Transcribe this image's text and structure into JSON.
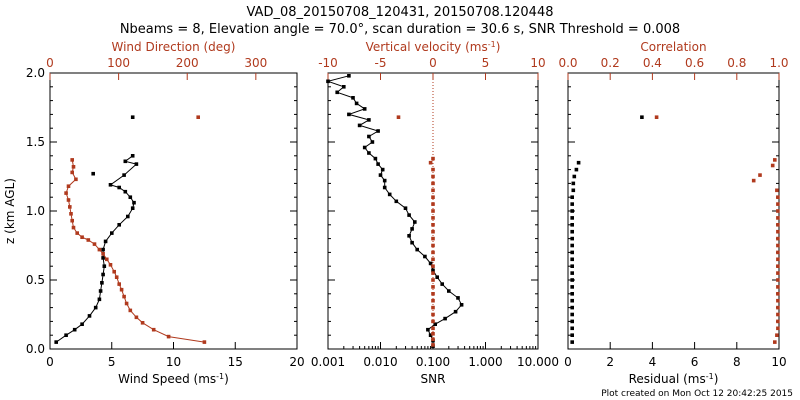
{
  "title": {
    "line1": "VAD_08_20150708_120431, 20150708.120448",
    "line2": "Nbeams = 8, Elevation angle = 70.0°, scan duration = 30.6 s, SNR Threshold = 0.008"
  },
  "footer": "Plot created on Mon Oct 12 20:42:25 2015",
  "colors": {
    "black": "#000000",
    "red": "#b03a1e"
  },
  "chart_data": [
    {
      "type": "scatter",
      "name": "wind-panel",
      "ylabel": "z (km AGL)",
      "ylim": [
        0,
        2.0
      ],
      "yticks": [
        "0.0",
        "0.5",
        "1.0",
        "1.5",
        "2.0"
      ],
      "bottom_axis": {
        "label": "Wind Speed (ms",
        "label_sup": "-1",
        "label_tail": ")",
        "range": [
          0,
          20
        ],
        "ticks": [
          "0",
          "5",
          "10",
          "15",
          "20"
        ]
      },
      "top_axis": {
        "label": "Wind Direction (deg)",
        "range": [
          0,
          360
        ],
        "ticks": [
          "0",
          "100",
          "200",
          "300"
        ]
      },
      "series": [
        {
          "name": "Wind speed",
          "axis": "bottom",
          "color": "black",
          "line": true,
          "points": [
            [
              0.5,
              0.05
            ],
            [
              1.3,
              0.1
            ],
            [
              2.0,
              0.14
            ],
            [
              2.6,
              0.18
            ],
            [
              3.2,
              0.24
            ],
            [
              3.7,
              0.3
            ],
            [
              4.0,
              0.36
            ],
            [
              4.1,
              0.42
            ],
            [
              4.2,
              0.48
            ],
            [
              4.3,
              0.54
            ],
            [
              4.4,
              0.6
            ],
            [
              4.3,
              0.66
            ],
            [
              4.3,
              0.72
            ],
            [
              4.5,
              0.78
            ],
            [
              5.0,
              0.84
            ],
            [
              5.6,
              0.9
            ],
            [
              6.3,
              0.96
            ],
            [
              6.7,
              1.02
            ],
            [
              6.8,
              1.06
            ],
            [
              6.5,
              1.1
            ],
            [
              6.1,
              1.14
            ],
            [
              5.6,
              1.17
            ],
            [
              4.9,
              1.19
            ],
            [
              6.0,
              1.26
            ],
            [
              7.0,
              1.34
            ],
            [
              6.1,
              1.36
            ],
            [
              6.7,
              1.4
            ]
          ]
        },
        {
          "name": "Wind speed (upper)",
          "axis": "bottom",
          "color": "black",
          "line": false,
          "points": [
            [
              3.5,
              1.27
            ],
            [
              6.7,
              1.68
            ]
          ]
        },
        {
          "name": "Wind direction",
          "axis": "bottom",
          "color": "red",
          "line": true,
          "points": [
            [
              12.5,
              0.05
            ],
            [
              9.6,
              0.09
            ],
            [
              8.4,
              0.14
            ],
            [
              7.5,
              0.19
            ],
            [
              7.0,
              0.23
            ],
            [
              6.5,
              0.28
            ],
            [
              6.2,
              0.33
            ],
            [
              6.0,
              0.38
            ],
            [
              5.8,
              0.43
            ],
            [
              5.6,
              0.47
            ],
            [
              5.4,
              0.52
            ],
            [
              5.2,
              0.56
            ],
            [
              4.9,
              0.61
            ],
            [
              4.6,
              0.65
            ],
            [
              4.3,
              0.69
            ],
            [
              4.0,
              0.72
            ],
            [
              3.6,
              0.76
            ],
            [
              3.1,
              0.79
            ],
            [
              2.6,
              0.81
            ],
            [
              2.2,
              0.84
            ],
            [
              1.9,
              0.88
            ],
            [
              1.8,
              0.93
            ],
            [
              1.7,
              0.98
            ],
            [
              1.6,
              1.03
            ],
            [
              1.5,
              1.08
            ],
            [
              1.3,
              1.13
            ],
            [
              1.5,
              1.18
            ],
            [
              2.1,
              1.23
            ],
            [
              1.8,
              1.28
            ],
            [
              1.9,
              1.32
            ],
            [
              1.8,
              1.37
            ]
          ]
        },
        {
          "name": "Wind direction (upper)",
          "axis": "bottom",
          "color": "red",
          "line": false,
          "points": [
            [
              12.0,
              1.68
            ]
          ]
        }
      ]
    },
    {
      "type": "scatter",
      "name": "vertical-velocity-panel",
      "ylim": [
        0,
        2.0
      ],
      "bottom_axis": {
        "label": "SNR",
        "scale": "log",
        "range": [
          0.001,
          10.0
        ],
        "ticks": [
          "0.001",
          "0.010",
          "0.100",
          "1.000",
          "10.000"
        ]
      },
      "top_axis": {
        "label": "Vertical velocity (ms",
        "label_sup": "-1",
        "label_tail": ")",
        "range": [
          -10,
          10
        ],
        "ticks": [
          "-10",
          "-5",
          "0",
          "5",
          "10"
        ]
      },
      "zero_reference": 0,
      "series": [
        {
          "name": "SNR",
          "axis": "bottom",
          "color": "black",
          "line": true,
          "points": [
            [
              0.1,
              0.02
            ],
            [
              0.1,
              0.06
            ],
            [
              0.09,
              0.1
            ],
            [
              0.08,
              0.14
            ],
            [
              0.11,
              0.18
            ],
            [
              0.17,
              0.22
            ],
            [
              0.27,
              0.27
            ],
            [
              0.35,
              0.32
            ],
            [
              0.3,
              0.37
            ],
            [
              0.2,
              0.42
            ],
            [
              0.15,
              0.47
            ],
            [
              0.12,
              0.52
            ],
            [
              0.1,
              0.57
            ],
            [
              0.09,
              0.62
            ],
            [
              0.07,
              0.67
            ],
            [
              0.05,
              0.72
            ],
            [
              0.04,
              0.77
            ],
            [
              0.035,
              0.82
            ],
            [
              0.04,
              0.87
            ],
            [
              0.045,
              0.92
            ],
            [
              0.035,
              0.97
            ],
            [
              0.03,
              1.02
            ],
            [
              0.02,
              1.07
            ],
            [
              0.015,
              1.12
            ],
            [
              0.012,
              1.17
            ],
            [
              0.012,
              1.22
            ],
            [
              0.01,
              1.26
            ],
            [
              0.011,
              1.3
            ],
            [
              0.009,
              1.34
            ],
            [
              0.008,
              1.38
            ],
            [
              0.006,
              1.42
            ],
            [
              0.005,
              1.46
            ],
            [
              0.007,
              1.5
            ],
            [
              0.006,
              1.54
            ],
            [
              0.009,
              1.58
            ],
            [
              0.004,
              1.62
            ],
            [
              0.006,
              1.66
            ],
            [
              0.0025,
              1.7
            ],
            [
              0.005,
              1.74
            ],
            [
              0.0035,
              1.78
            ],
            [
              0.003,
              1.82
            ],
            [
              0.0015,
              1.86
            ],
            [
              0.002,
              1.9
            ],
            [
              0.001,
              1.94
            ],
            [
              0.0025,
              1.98
            ]
          ]
        },
        {
          "name": "Vertical velocity",
          "axis": "bottom",
          "color": "red",
          "line": false,
          "points": [
            [
              0.1,
              0.03
            ],
            [
              0.1,
              0.07
            ],
            [
              0.1,
              0.11
            ],
            [
              0.1,
              0.15
            ],
            [
              0.1,
              0.2
            ],
            [
              0.1,
              0.25
            ],
            [
              0.1,
              0.3
            ],
            [
              0.1,
              0.35
            ],
            [
              0.1,
              0.4
            ],
            [
              0.1,
              0.45
            ],
            [
              0.1,
              0.5
            ],
            [
              0.1,
              0.55
            ],
            [
              0.1,
              0.6
            ],
            [
              0.1,
              0.65
            ],
            [
              0.1,
              0.7
            ],
            [
              0.1,
              0.75
            ],
            [
              0.1,
              0.8
            ],
            [
              0.1,
              0.85
            ],
            [
              0.1,
              0.9
            ],
            [
              0.1,
              0.95
            ],
            [
              0.1,
              1.0
            ],
            [
              0.1,
              1.05
            ],
            [
              0.1,
              1.1
            ],
            [
              0.1,
              1.15
            ],
            [
              0.1,
              1.2
            ],
            [
              0.1,
              1.25
            ],
            [
              0.1,
              1.3
            ],
            [
              0.09,
              1.35
            ],
            [
              0.1,
              1.38
            ],
            [
              0.022,
              1.68
            ]
          ]
        }
      ]
    },
    {
      "type": "scatter",
      "name": "correlation-panel",
      "ylim": [
        0,
        2.0
      ],
      "bottom_axis": {
        "label": "Residual (ms",
        "label_sup": "-1",
        "label_tail": ")",
        "range": [
          0,
          10
        ],
        "ticks": [
          "0",
          "2",
          "4",
          "6",
          "8",
          "10"
        ]
      },
      "top_axis": {
        "label": "Correlation",
        "range": [
          0.0,
          1.0
        ],
        "ticks": [
          "0.0",
          "0.2",
          "0.4",
          "0.6",
          "0.8",
          "1.0"
        ]
      },
      "series": [
        {
          "name": "Residual",
          "axis": "bottom",
          "color": "black",
          "line": false,
          "points": [
            [
              0.2,
              0.05
            ],
            [
              0.2,
              0.1
            ],
            [
              0.2,
              0.15
            ],
            [
              0.2,
              0.2
            ],
            [
              0.2,
              0.25
            ],
            [
              0.2,
              0.3
            ],
            [
              0.2,
              0.35
            ],
            [
              0.2,
              0.4
            ],
            [
              0.2,
              0.45
            ],
            [
              0.2,
              0.5
            ],
            [
              0.2,
              0.55
            ],
            [
              0.2,
              0.6
            ],
            [
              0.2,
              0.65
            ],
            [
              0.2,
              0.7
            ],
            [
              0.2,
              0.75
            ],
            [
              0.2,
              0.8
            ],
            [
              0.2,
              0.85
            ],
            [
              0.2,
              0.9
            ],
            [
              0.2,
              0.95
            ],
            [
              0.2,
              1.0
            ],
            [
              0.2,
              1.05
            ],
            [
              0.2,
              1.1
            ],
            [
              0.25,
              1.15
            ],
            [
              0.25,
              1.2
            ],
            [
              0.3,
              1.25
            ],
            [
              0.4,
              1.3
            ],
            [
              0.5,
              1.35
            ],
            [
              3.5,
              1.68
            ]
          ]
        },
        {
          "name": "Correlation",
          "axis": "bottom",
          "color": "red",
          "line": false,
          "points": [
            [
              9.8,
              0.05
            ],
            [
              9.9,
              0.1
            ],
            [
              9.95,
              0.15
            ],
            [
              9.95,
              0.2
            ],
            [
              9.95,
              0.25
            ],
            [
              9.95,
              0.3
            ],
            [
              9.95,
              0.35
            ],
            [
              9.95,
              0.4
            ],
            [
              9.95,
              0.45
            ],
            [
              9.95,
              0.5
            ],
            [
              9.95,
              0.55
            ],
            [
              9.95,
              0.6
            ],
            [
              9.95,
              0.65
            ],
            [
              9.95,
              0.7
            ],
            [
              9.95,
              0.75
            ],
            [
              9.95,
              0.8
            ],
            [
              9.95,
              0.85
            ],
            [
              9.95,
              0.9
            ],
            [
              9.95,
              0.95
            ],
            [
              9.95,
              1.0
            ],
            [
              9.95,
              1.05
            ],
            [
              9.95,
              1.1
            ],
            [
              9.9,
              1.15
            ],
            [
              8.8,
              1.22
            ],
            [
              9.1,
              1.26
            ],
            [
              9.7,
              1.33
            ],
            [
              9.8,
              1.37
            ],
            [
              4.2,
              1.68
            ]
          ]
        }
      ]
    }
  ]
}
